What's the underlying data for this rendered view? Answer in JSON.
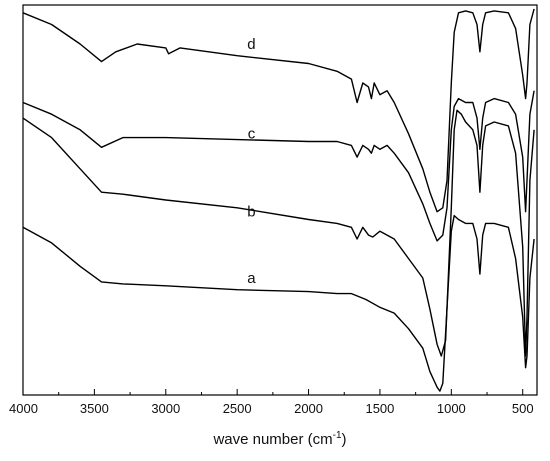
{
  "chart_data": {
    "type": "line",
    "title": "",
    "xlabel": "wave number (cm",
    "xlabel_sup": "-1",
    "xlabel_close": ")",
    "ylabel": "",
    "xlim": [
      4000,
      400
    ],
    "x_reversed": true,
    "ylim": [
      0,
      100
    ],
    "grid": false,
    "legend": "none",
    "x_ticks": [
      "4000",
      "3500",
      "3000",
      "2500",
      "2000",
      "1500",
      "1000",
      "500"
    ],
    "series": [
      {
        "name": "d",
        "points": [
          [
            4000,
            98
          ],
          [
            3800,
            95
          ],
          [
            3600,
            90
          ],
          [
            3450,
            85.5
          ],
          [
            3350,
            88
          ],
          [
            3200,
            90
          ],
          [
            3000,
            89
          ],
          [
            2980,
            87.5
          ],
          [
            2900,
            89
          ],
          [
            2500,
            87
          ],
          [
            2000,
            85
          ],
          [
            1800,
            83
          ],
          [
            1700,
            81
          ],
          [
            1660,
            75
          ],
          [
            1620,
            80
          ],
          [
            1580,
            79
          ],
          [
            1560,
            76
          ],
          [
            1540,
            80
          ],
          [
            1500,
            77
          ],
          [
            1450,
            78
          ],
          [
            1400,
            75
          ],
          [
            1300,
            67
          ],
          [
            1200,
            58
          ],
          [
            1150,
            52
          ],
          [
            1100,
            47
          ],
          [
            1060,
            48
          ],
          [
            1030,
            55
          ],
          [
            1000,
            80
          ],
          [
            980,
            93
          ],
          [
            950,
            98
          ],
          [
            900,
            98.5
          ],
          [
            850,
            98
          ],
          [
            820,
            95
          ],
          [
            800,
            88
          ],
          [
            780,
            95
          ],
          [
            760,
            98
          ],
          [
            700,
            98.5
          ],
          [
            600,
            98
          ],
          [
            550,
            94
          ],
          [
            500,
            82
          ],
          [
            480,
            76
          ],
          [
            470,
            80
          ],
          [
            450,
            95
          ],
          [
            420,
            99
          ]
        ]
      },
      {
        "name": "c",
        "points": [
          [
            4000,
            75
          ],
          [
            3800,
            72
          ],
          [
            3600,
            68
          ],
          [
            3450,
            63.5
          ],
          [
            3300,
            66
          ],
          [
            3000,
            66
          ],
          [
            2000,
            65
          ],
          [
            1800,
            65
          ],
          [
            1700,
            64
          ],
          [
            1660,
            61
          ],
          [
            1620,
            64
          ],
          [
            1580,
            63
          ],
          [
            1560,
            62
          ],
          [
            1540,
            64
          ],
          [
            1500,
            63
          ],
          [
            1450,
            64
          ],
          [
            1400,
            62
          ],
          [
            1300,
            57
          ],
          [
            1200,
            49
          ],
          [
            1150,
            44
          ],
          [
            1100,
            39.5
          ],
          [
            1060,
            41
          ],
          [
            1030,
            48
          ],
          [
            1000,
            68
          ],
          [
            980,
            74
          ],
          [
            950,
            76
          ],
          [
            900,
            75
          ],
          [
            850,
            75
          ],
          [
            820,
            71
          ],
          [
            800,
            63
          ],
          [
            780,
            71
          ],
          [
            760,
            75
          ],
          [
            700,
            76
          ],
          [
            600,
            75
          ],
          [
            550,
            72
          ],
          [
            500,
            61
          ],
          [
            480,
            47
          ],
          [
            470,
            55
          ],
          [
            450,
            72
          ],
          [
            420,
            78
          ]
        ]
      },
      {
        "name": "b",
        "points": [
          [
            4000,
            71
          ],
          [
            3800,
            66
          ],
          [
            3600,
            58
          ],
          [
            3450,
            52
          ],
          [
            3300,
            51.5
          ],
          [
            3000,
            50
          ],
          [
            2500,
            48
          ],
          [
            2000,
            45
          ],
          [
            1800,
            44
          ],
          [
            1700,
            43
          ],
          [
            1660,
            40
          ],
          [
            1620,
            43
          ],
          [
            1580,
            41
          ],
          [
            1550,
            40.5
          ],
          [
            1500,
            42
          ],
          [
            1400,
            40
          ],
          [
            1300,
            35
          ],
          [
            1200,
            30
          ],
          [
            1150,
            22
          ],
          [
            1100,
            13
          ],
          [
            1070,
            10
          ],
          [
            1040,
            14
          ],
          [
            1000,
            48
          ],
          [
            980,
            68
          ],
          [
            960,
            73
          ],
          [
            930,
            72
          ],
          [
            900,
            70
          ],
          [
            850,
            68
          ],
          [
            820,
            64
          ],
          [
            800,
            52
          ],
          [
            780,
            64
          ],
          [
            760,
            69
          ],
          [
            700,
            70
          ],
          [
            600,
            69
          ],
          [
            550,
            62
          ],
          [
            500,
            38
          ],
          [
            480,
            10
          ],
          [
            470,
            20
          ],
          [
            450,
            55
          ],
          [
            420,
            68
          ]
        ]
      },
      {
        "name": "a",
        "points": [
          [
            4000,
            43
          ],
          [
            3800,
            39
          ],
          [
            3600,
            33
          ],
          [
            3450,
            29
          ],
          [
            3300,
            28.5
          ],
          [
            3000,
            28
          ],
          [
            2500,
            27
          ],
          [
            2000,
            26.5
          ],
          [
            1800,
            26
          ],
          [
            1700,
            26
          ],
          [
            1600,
            24.5
          ],
          [
            1500,
            22.5
          ],
          [
            1400,
            21
          ],
          [
            1300,
            17
          ],
          [
            1200,
            12
          ],
          [
            1150,
            6
          ],
          [
            1100,
            2
          ],
          [
            1080,
            1
          ],
          [
            1060,
            3
          ],
          [
            1000,
            42
          ],
          [
            980,
            46
          ],
          [
            950,
            45
          ],
          [
            900,
            44
          ],
          [
            850,
            44
          ],
          [
            820,
            40
          ],
          [
            800,
            31
          ],
          [
            780,
            41
          ],
          [
            760,
            44
          ],
          [
            700,
            44
          ],
          [
            600,
            43
          ],
          [
            550,
            35
          ],
          [
            500,
            20
          ],
          [
            480,
            7
          ],
          [
            470,
            10
          ],
          [
            450,
            30
          ],
          [
            420,
            40
          ]
        ]
      }
    ]
  },
  "curve_labels": [
    {
      "series": "d",
      "text": "d",
      "x": 2400,
      "y": 90
    },
    {
      "series": "c",
      "text": "c",
      "x": 2400,
      "y": 67
    },
    {
      "series": "b",
      "text": "b",
      "x": 2400,
      "y": 47
    },
    {
      "series": "a",
      "text": "a",
      "x": 2400,
      "y": 30
    }
  ]
}
